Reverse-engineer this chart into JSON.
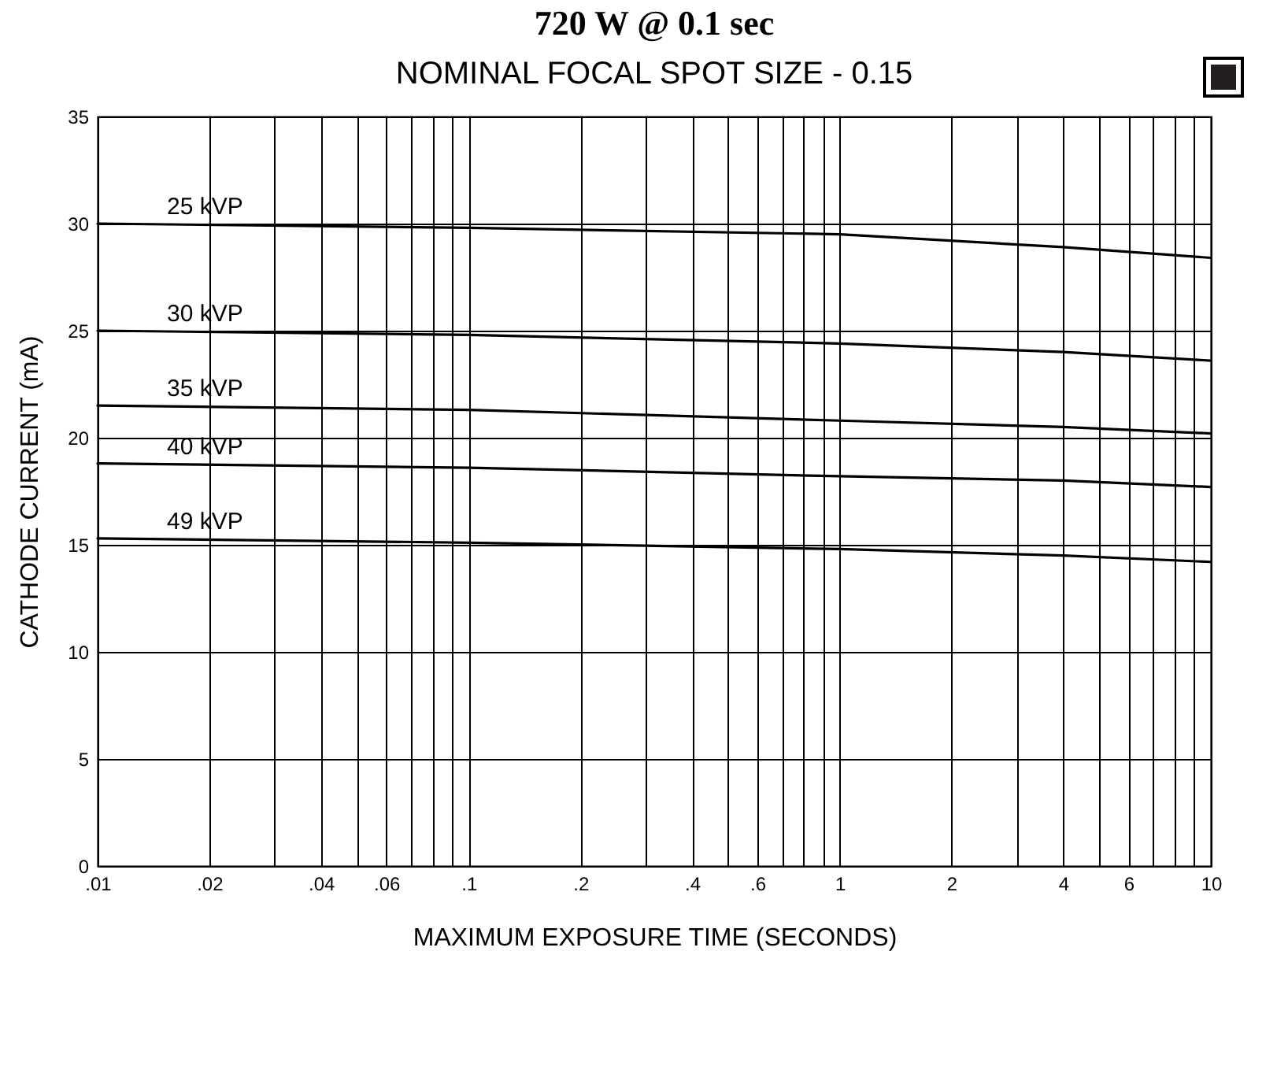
{
  "chart_data": {
    "type": "line",
    "title": "720 W @ 0.1 sec",
    "subtitle": "NOMINAL FOCAL SPOT SIZE - 0.15",
    "xlabel": "MAXIMUM EXPOSURE TIME (SECONDS)",
    "ylabel": "CATHODE CURRENT (mA)",
    "x": [
      0.01,
      0.1,
      1,
      4,
      10
    ],
    "series": [
      {
        "name": "25 kVP",
        "color": "#000000",
        "values": [
          30,
          29.8,
          29.5,
          28.9,
          28.4
        ]
      },
      {
        "name": "30 kVP",
        "color": "#000000",
        "values": [
          25,
          24.8,
          24.4,
          24.0,
          23.6
        ]
      },
      {
        "name": "35 kVP",
        "color": "#000000",
        "values": [
          21.5,
          21.3,
          20.8,
          20.5,
          20.2
        ]
      },
      {
        "name": "40 kVP",
        "color": "#000000",
        "values": [
          18.8,
          18.6,
          18.2,
          18.0,
          17.7
        ]
      },
      {
        "name": "49 kVP",
        "color": "#000000",
        "values": [
          15.3,
          15.1,
          14.8,
          14.5,
          14.2
        ]
      }
    ],
    "log": "x",
    "xlim": [
      0.01,
      10
    ],
    "ylim": [
      0,
      35
    ],
    "xticks": [
      {
        "value": 0.01,
        "label": ".01"
      },
      {
        "value": 0.02,
        "label": ".02"
      },
      {
        "value": 0.03,
        "label": null
      },
      {
        "value": 0.04,
        "label": ".04"
      },
      {
        "value": 0.05,
        "label": null
      },
      {
        "value": 0.06,
        "label": ".06"
      },
      {
        "value": 0.07,
        "label": null
      },
      {
        "value": 0.08,
        "label": null
      },
      {
        "value": 0.09,
        "label": null
      },
      {
        "value": 0.1,
        "label": ".1"
      },
      {
        "value": 0.2,
        "label": ".2"
      },
      {
        "value": 0.3,
        "label": null
      },
      {
        "value": 0.4,
        "label": ".4"
      },
      {
        "value": 0.5,
        "label": null
      },
      {
        "value": 0.6,
        "label": ".6"
      },
      {
        "value": 0.7,
        "label": null
      },
      {
        "value": 0.8,
        "label": null
      },
      {
        "value": 0.9,
        "label": null
      },
      1,
      2,
      {
        "value": 3,
        "label": null
      },
      4,
      {
        "value": 5,
        "label": null
      },
      6,
      {
        "value": 7,
        "label": null
      },
      {
        "value": 8,
        "label": null
      },
      {
        "value": 9,
        "label": null
      },
      10
    ],
    "yticks": [
      0,
      5,
      10,
      15,
      20,
      25,
      30,
      35
    ],
    "grid": true,
    "legend": false,
    "marker": "none",
    "line_style": "solid"
  }
}
